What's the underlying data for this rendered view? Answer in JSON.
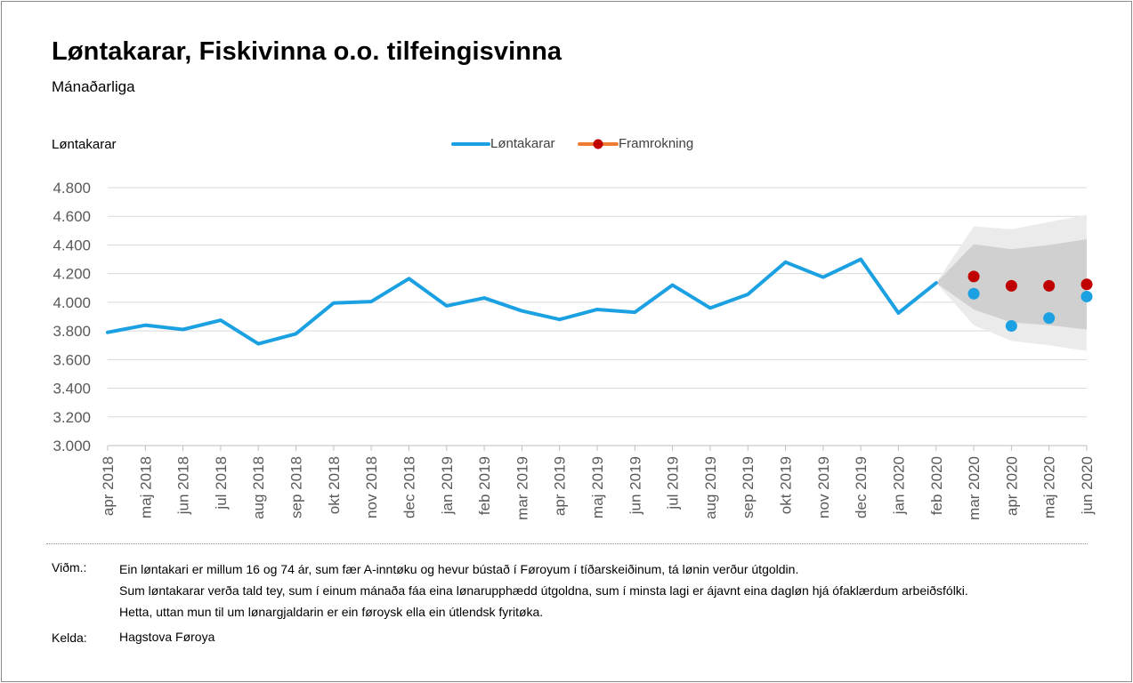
{
  "title": "Løntakarar, Fiskivinna o.o. tilfeingisvinna",
  "subtitle": "Mánaðarliga",
  "notes": {
    "label": "Viðm.:",
    "lines": [
      "Ein løntakari er millum 16 og 74 ár, sum fær A-inntøku og hevur bústað í Føroyum í tíðarskeiðinum, tá lønin verður útgoldin.",
      "Sum løntakarar verða tald tey, sum í einum mánaða fáa eina lønarupphædd útgoldna, sum í minsta lagi er ájavnt eina dagløn hjá ófaklærdum arbeiðsfólki.",
      "Hetta, uttan mun til um lønargjaldarin er ein føroysk ella ein útlendsk fyritøka."
    ]
  },
  "source": {
    "label": "Kelda:",
    "text": "Hagstova Føroya"
  },
  "chart_data": {
    "type": "line",
    "ylabel": "Løntakarar",
    "ylim": [
      3000,
      4800
    ],
    "yticks": [
      3000,
      3200,
      3400,
      3600,
      3800,
      4000,
      4200,
      4400,
      4600,
      4800
    ],
    "ytick_labels": [
      "3.000",
      "3.200",
      "3.400",
      "3.600",
      "3.800",
      "4.000",
      "4.200",
      "4.400",
      "4.600",
      "4.800"
    ],
    "grid": true,
    "legend_position": "top-center",
    "categories": [
      "apr 2018",
      "maj 2018",
      "jun 2018",
      "jul 2018",
      "aug 2018",
      "sep 2018",
      "okt 2018",
      "nov 2018",
      "dec 2018",
      "jan 2019",
      "feb 2019",
      "mar 2019",
      "apr 2019",
      "maj 2019",
      "jun 2019",
      "jul 2019",
      "aug 2019",
      "sep 2019",
      "okt 2019",
      "nov 2019",
      "dec 2019",
      "jan 2020",
      "feb 2020",
      "mar 2020",
      "apr 2020",
      "maj 2020",
      "jun 2020"
    ],
    "series": [
      {
        "name": "Løntakarar",
        "color": "#1ba1e2",
        "values": [
          3790,
          3840,
          3810,
          3875,
          3710,
          3780,
          3995,
          4005,
          4165,
          3975,
          4030,
          3940,
          3880,
          3950,
          3930,
          4120,
          3960,
          4055,
          4280,
          4175,
          4300,
          3925,
          4135,
          null,
          null,
          null,
          null
        ]
      },
      {
        "name": "Framrokning",
        "color": "#c00000",
        "line_color": "#ed7d31",
        "values": [
          null,
          null,
          null,
          null,
          null,
          null,
          null,
          null,
          null,
          null,
          null,
          null,
          null,
          null,
          null,
          null,
          null,
          null,
          null,
          null,
          null,
          null,
          null,
          4180,
          4115,
          4115,
          4125
        ]
      }
    ],
    "actual_points": {
      "color": "#1ba1e2",
      "values": [
        null,
        null,
        null,
        null,
        null,
        null,
        null,
        null,
        null,
        null,
        null,
        null,
        null,
        null,
        null,
        null,
        null,
        null,
        null,
        null,
        null,
        null,
        null,
        4060,
        3835,
        3890,
        4040
      ]
    },
    "bands": {
      "start_index": 22,
      "outer": {
        "color": "#ebebeb",
        "upper": [
          4135,
          4530,
          4510,
          4560,
          4610
        ],
        "lower": [
          4135,
          3840,
          3730,
          3700,
          3660
        ]
      },
      "inner": {
        "color": "#d0d0d0",
        "upper": [
          4135,
          4405,
          4370,
          4400,
          4440
        ],
        "lower": [
          4135,
          3950,
          3860,
          3840,
          3810
        ]
      }
    }
  }
}
